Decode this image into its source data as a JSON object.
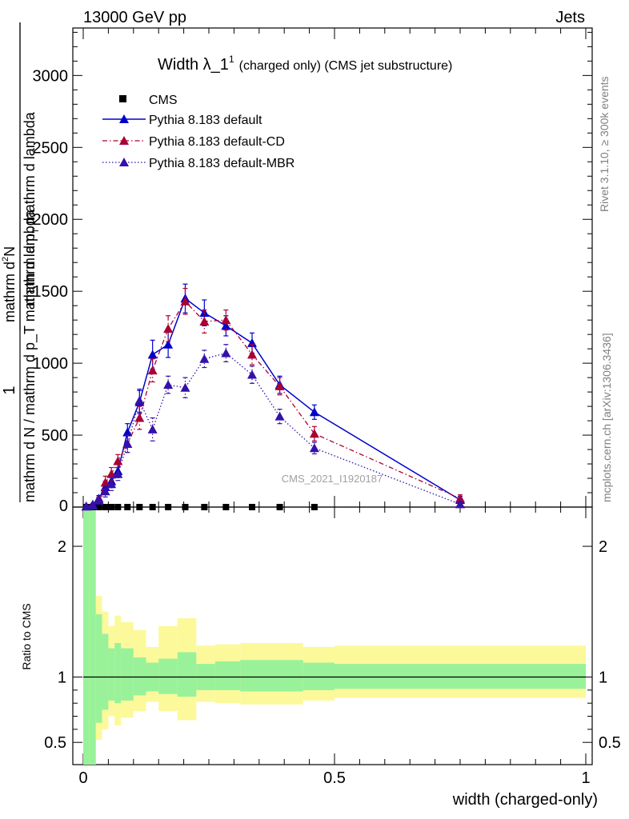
{
  "header": {
    "left": "13000 GeV pp",
    "right": "Jets"
  },
  "side_labels": {
    "rivet": "Rivet 3.1.10, ≥ 300k events",
    "mcplots": "mcplots.cern.ch [arXiv:1306.3436]"
  },
  "watermark": "CMS_2021_I1920187",
  "colors": {
    "default": "#0000cc",
    "cd": "#aa0033",
    "mbr": "#3311aa",
    "band_inner": "#99f299",
    "band_outer": "#fbf99a"
  },
  "chart_data": [
    {
      "type": "line",
      "title_main": "Width λ_1",
      "title_sup": "1",
      "title_rest": "(charged only) (CMS jet substructure)",
      "ylabel_1": "1",
      "ylabel_2": "mathrm d N / mathrm d p_T mathrm d lambda",
      "ylabel_3": "mathrm d",
      "ylabel_4": "2",
      "ylabel_5": "N",
      "ylabel_6": "mathrm d p",
      "ylabel_7": "T",
      "ylabel_8": " mathrm d lambda",
      "xlim": [
        0,
        1
      ],
      "ylim": [
        0,
        3330
      ],
      "yticks": [
        "500",
        "1000",
        "1500",
        "2000",
        "2500",
        "3000"
      ],
      "ytick_values": [
        500,
        1000,
        1500,
        2000,
        2500,
        3000
      ],
      "y_zero_label": "0",
      "legend_position": "top-left",
      "series": [
        {
          "name": "CMS",
          "style": "marker",
          "x": [
            0.006,
            0.019,
            0.031,
            0.044,
            0.056,
            0.069,
            0.088,
            0.112,
            0.138,
            0.169,
            0.203,
            0.241,
            0.284,
            0.336,
            0.391,
            0.46
          ],
          "y": [
            0,
            0,
            0,
            0,
            0,
            0,
            0,
            0,
            0,
            0,
            0,
            0,
            0,
            0,
            0,
            0
          ]
        },
        {
          "name": "Pythia 8.183 default",
          "style": "solid",
          "x": [
            0.006,
            0.019,
            0.031,
            0.044,
            0.056,
            0.069,
            0.088,
            0.112,
            0.138,
            0.169,
            0.203,
            0.241,
            0.284,
            0.336,
            0.391,
            0.46,
            0.75
          ],
          "y": [
            5,
            18,
            60,
            140,
            180,
            250,
            520,
            730,
            1060,
            1130,
            1450,
            1350,
            1260,
            1140,
            850,
            660,
            50
          ],
          "err": [
            4,
            8,
            20,
            40,
            45,
            45,
            60,
            80,
            100,
            90,
            100,
            90,
            70,
            70,
            60,
            50,
            25
          ]
        },
        {
          "name": "Pythia 8.183 default-CD",
          "style": "dashdot",
          "x": [
            0.006,
            0.019,
            0.031,
            0.044,
            0.056,
            0.069,
            0.088,
            0.112,
            0.138,
            0.169,
            0.203,
            0.241,
            0.284,
            0.336,
            0.391,
            0.46,
            0.75
          ],
          "y": [
            5,
            12,
            50,
            170,
            230,
            320,
            440,
            620,
            950,
            1240,
            1430,
            1290,
            1300,
            1060,
            840,
            510,
            60
          ],
          "err": [
            4,
            8,
            20,
            45,
            45,
            45,
            60,
            80,
            80,
            90,
            90,
            80,
            70,
            70,
            60,
            50,
            25
          ]
        },
        {
          "name": "Pythia 8.183 default-MBR",
          "style": "dotted",
          "x": [
            0.006,
            0.019,
            0.031,
            0.044,
            0.056,
            0.069,
            0.088,
            0.112,
            0.138,
            0.169,
            0.203,
            0.241,
            0.284,
            0.336,
            0.391,
            0.46,
            0.75
          ],
          "y": [
            5,
            10,
            45,
            110,
            160,
            230,
            440,
            740,
            540,
            850,
            830,
            1030,
            1070,
            920,
            630,
            410,
            20
          ],
          "err": [
            4,
            8,
            20,
            40,
            45,
            45,
            60,
            80,
            80,
            60,
            70,
            60,
            60,
            60,
            50,
            40,
            20
          ]
        }
      ]
    },
    {
      "type": "area",
      "ylabel": "Ratio to CMS",
      "xlabel": "width (charged-only)",
      "xlim": [
        0,
        1
      ],
      "ylim": [
        0.33,
        2.3
      ],
      "xticks": [
        "0",
        "0.5",
        "1"
      ],
      "xtick_values": [
        0,
        0.5,
        1
      ],
      "yticks": [
        "0.5",
        "1",
        "2"
      ],
      "ytick_values": [
        0.5,
        1,
        2
      ],
      "reference_y": 1,
      "bins": [
        0,
        0.0125,
        0.025,
        0.0375,
        0.05,
        0.0625,
        0.075,
        0.1,
        0.125,
        0.15,
        0.1875,
        0.225,
        0.2625,
        0.3125,
        0.375,
        0.4375,
        0.5,
        1.0
      ],
      "inner_hi": [
        2.3,
        2.3,
        1.48,
        1.33,
        1.22,
        1.26,
        1.22,
        1.15,
        1.11,
        1.14,
        1.19,
        1.1,
        1.12,
        1.13,
        1.13,
        1.11,
        1.1
      ],
      "inner_lo": [
        0.33,
        0.33,
        0.65,
        0.75,
        0.82,
        0.8,
        0.82,
        0.86,
        0.89,
        0.87,
        0.85,
        0.9,
        0.9,
        0.89,
        0.89,
        0.9,
        0.91
      ],
      "outer_hi": [
        2.3,
        2.3,
        1.62,
        1.5,
        1.39,
        1.47,
        1.42,
        1.36,
        1.23,
        1.39,
        1.45,
        1.24,
        1.25,
        1.26,
        1.26,
        1.23,
        1.24
      ],
      "outer_lo": [
        0.33,
        0.33,
        0.52,
        0.6,
        0.7,
        0.63,
        0.69,
        0.74,
        0.81,
        0.74,
        0.67,
        0.81,
        0.8,
        0.79,
        0.79,
        0.82,
        0.84
      ]
    }
  ]
}
